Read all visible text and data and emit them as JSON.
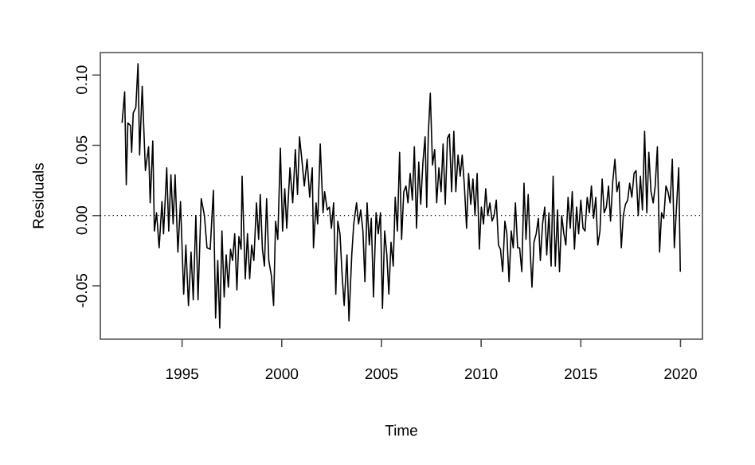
{
  "chart_data": {
    "type": "line",
    "xlabel": "Time",
    "ylabel": "Residuals",
    "xlim": [
      1990.9,
      2021.1
    ],
    "ylim": [
      -0.088,
      0.116
    ],
    "xticks": [
      1995,
      2000,
      2005,
      2010,
      2015,
      2020
    ],
    "yticks": [
      {
        "value": -0.05,
        "label": "-0.05"
      },
      {
        "value": 0,
        "label": "0.00"
      },
      {
        "value": 0.05,
        "label": "0.05"
      },
      {
        "value": 0.1,
        "label": "0.10"
      }
    ],
    "grid": false,
    "marker": "none",
    "line_style": "solid",
    "ref_lines": [
      {
        "axis": "y",
        "value": 0,
        "line_style": "dotted"
      }
    ],
    "series": [
      {
        "color": "#000000",
        "x": [
          1991.99,
          1992.12,
          1992.2,
          1992.28,
          1992.41,
          1992.47,
          1992.55,
          1992.68,
          1992.79,
          1992.87,
          1993.0,
          1993.16,
          1993.32,
          1993.4,
          1993.53,
          1993.61,
          1993.72,
          1993.85,
          1993.99,
          1994.07,
          1994.23,
          1994.33,
          1994.44,
          1994.55,
          1994.65,
          1994.79,
          1994.92,
          1995.08,
          1995.19,
          1995.32,
          1995.45,
          1995.56,
          1995.69,
          1995.8,
          1995.96,
          1996.12,
          1996.25,
          1996.41,
          1996.57,
          1996.68,
          1996.79,
          1996.89,
          1997.0,
          1997.11,
          1997.21,
          1997.32,
          1997.43,
          1997.53,
          1997.64,
          1997.75,
          1997.85,
          1997.96,
          1998.01,
          1998.17,
          1998.28,
          1998.39,
          1998.49,
          1998.6,
          1998.73,
          1998.84,
          1998.92,
          1999.03,
          1999.13,
          1999.24,
          1999.35,
          1999.48,
          1999.59,
          1999.69,
          1999.8,
          1999.93,
          2000.04,
          2000.15,
          2000.25,
          2000.41,
          2000.55,
          2000.68,
          2000.79,
          2000.89,
          2001.0,
          2001.13,
          2001.27,
          2001.4,
          2001.53,
          2001.59,
          2001.72,
          2001.8,
          2001.93,
          2002.07,
          2002.15,
          2002.28,
          2002.39,
          2002.49,
          2002.6,
          2002.71,
          2002.81,
          2002.92,
          2003.03,
          2003.13,
          2003.27,
          2003.37,
          2003.51,
          2003.61,
          2003.75,
          2003.85,
          2003.96,
          2004.07,
          2004.17,
          2004.28,
          2004.39,
          2004.49,
          2004.6,
          2004.73,
          2004.84,
          2004.95,
          2005.05,
          2005.16,
          2005.27,
          2005.37,
          2005.48,
          2005.59,
          2005.69,
          2005.8,
          2005.91,
          2006.01,
          2006.12,
          2006.23,
          2006.33,
          2006.44,
          2006.55,
          2006.65,
          2006.76,
          2006.87,
          2006.97,
          2007.08,
          2007.19,
          2007.27,
          2007.35,
          2007.45,
          2007.56,
          2007.67,
          2007.77,
          2007.88,
          2007.99,
          2008.09,
          2008.2,
          2008.31,
          2008.41,
          2008.52,
          2008.63,
          2008.73,
          2008.84,
          2008.95,
          2009.05,
          2009.16,
          2009.27,
          2009.37,
          2009.48,
          2009.59,
          2009.69,
          2009.8,
          2009.91,
          2010.01,
          2010.12,
          2010.23,
          2010.33,
          2010.44,
          2010.55,
          2010.65,
          2010.76,
          2010.87,
          2010.97,
          2011.08,
          2011.19,
          2011.29,
          2011.4,
          2011.51,
          2011.61,
          2011.72,
          2011.83,
          2011.93,
          2012.04,
          2012.15,
          2012.25,
          2012.36,
          2012.47,
          2012.55,
          2012.65,
          2012.76,
          2012.87,
          2012.97,
          2013.08,
          2013.19,
          2013.29,
          2013.4,
          2013.51,
          2013.61,
          2013.72,
          2013.83,
          2013.93,
          2014.04,
          2014.15,
          2014.25,
          2014.36,
          2014.47,
          2014.57,
          2014.68,
          2014.79,
          2014.89,
          2015.0,
          2015.11,
          2015.21,
          2015.32,
          2015.43,
          2015.53,
          2015.64,
          2015.75,
          2015.85,
          2015.96,
          2016.07,
          2016.17,
          2016.28,
          2016.39,
          2016.49,
          2016.6,
          2016.71,
          2016.81,
          2016.92,
          2017.03,
          2017.13,
          2017.24,
          2017.35,
          2017.45,
          2017.56,
          2017.67,
          2017.77,
          2017.88,
          2017.99,
          2018.09,
          2018.2,
          2018.31,
          2018.41,
          2018.52,
          2018.63,
          2018.73,
          2018.84,
          2018.95,
          2019.05,
          2019.16,
          2019.27,
          2019.37,
          2019.48,
          2019.59,
          2019.69,
          2019.8,
          2019.91,
          2019.99
        ],
        "values": [
          0.066,
          0.088,
          0.022,
          0.066,
          0.064,
          0.045,
          0.073,
          0.077,
          0.108,
          0.043,
          0.092,
          0.032,
          0.049,
          0.009,
          0.053,
          -0.011,
          0.002,
          -0.023,
          0.01,
          -0.013,
          0.034,
          -0.011,
          0.029,
          -0.006,
          0.029,
          -0.026,
          0.01,
          -0.056,
          -0.021,
          -0.064,
          -0.026,
          -0.06,
          0.0,
          -0.06,
          0.012,
          0.0,
          -0.023,
          -0.024,
          0.018,
          -0.073,
          -0.032,
          -0.08,
          -0.011,
          -0.058,
          -0.028,
          -0.051,
          -0.024,
          -0.032,
          -0.013,
          -0.053,
          -0.015,
          -0.024,
          0.028,
          -0.045,
          -0.013,
          -0.045,
          -0.021,
          -0.032,
          0.009,
          -0.017,
          0.015,
          -0.024,
          -0.036,
          0.012,
          -0.032,
          -0.043,
          -0.064,
          -0.004,
          -0.017,
          0.048,
          -0.011,
          0.019,
          -0.009,
          0.034,
          0.009,
          0.047,
          0.015,
          0.056,
          0.041,
          0.021,
          0.04,
          0.013,
          0.034,
          -0.023,
          0.009,
          -0.006,
          0.051,
          0.002,
          0.017,
          0.004,
          0.006,
          -0.009,
          0.009,
          -0.056,
          -0.004,
          -0.013,
          -0.043,
          -0.064,
          -0.028,
          -0.075,
          -0.028,
          -0.006,
          0.009,
          -0.006,
          0.004,
          -0.011,
          -0.047,
          0.009,
          -0.021,
          -0.002,
          -0.058,
          0.002,
          -0.013,
          0.002,
          -0.066,
          -0.011,
          -0.028,
          -0.056,
          -0.019,
          -0.036,
          0.013,
          -0.011,
          0.045,
          -0.017,
          0.017,
          0.021,
          0.009,
          0.03,
          0.011,
          0.049,
          -0.009,
          0.038,
          0.008,
          0.038,
          0.056,
          0.006,
          0.058,
          0.087,
          0.036,
          0.047,
          0.009,
          0.034,
          0.017,
          0.051,
          0.008,
          0.055,
          0.058,
          0.017,
          0.06,
          0.017,
          0.043,
          0.028,
          0.043,
          0.021,
          -0.009,
          0.03,
          0.008,
          0.026,
          0.0,
          0.03,
          -0.024,
          0.006,
          -0.006,
          0.019,
          0.0,
          0.009,
          -0.004,
          0.0,
          0.011,
          -0.021,
          -0.024,
          -0.04,
          -0.004,
          -0.013,
          -0.047,
          -0.011,
          -0.023,
          0.009,
          -0.023,
          -0.023,
          -0.04,
          0.023,
          -0.017,
          0.015,
          -0.028,
          -0.051,
          -0.019,
          -0.013,
          -0.002,
          -0.032,
          -0.006,
          0.006,
          -0.028,
          0.002,
          -0.036,
          0.028,
          -0.036,
          0.004,
          -0.04,
          0.0,
          -0.013,
          -0.021,
          0.013,
          -0.009,
          0.017,
          -0.024,
          0.006,
          -0.013,
          0.011,
          -0.009,
          -0.011,
          0.013,
          0.002,
          0.021,
          -0.002,
          0.013,
          -0.021,
          -0.011,
          0.026,
          0.002,
          0.006,
          0.021,
          -0.004,
          0.024,
          0.04,
          0.017,
          0.024,
          -0.023,
          0.0,
          0.008,
          0.011,
          0.023,
          0.013,
          0.03,
          0.032,
          0.0,
          0.028,
          0.004,
          0.06,
          0.002,
          0.045,
          0.017,
          0.009,
          0.021,
          0.049,
          -0.026,
          0.002,
          -0.002,
          0.021,
          0.017,
          0.009,
          0.04,
          -0.023,
          0.006,
          0.034,
          -0.04
        ]
      }
    ]
  }
}
